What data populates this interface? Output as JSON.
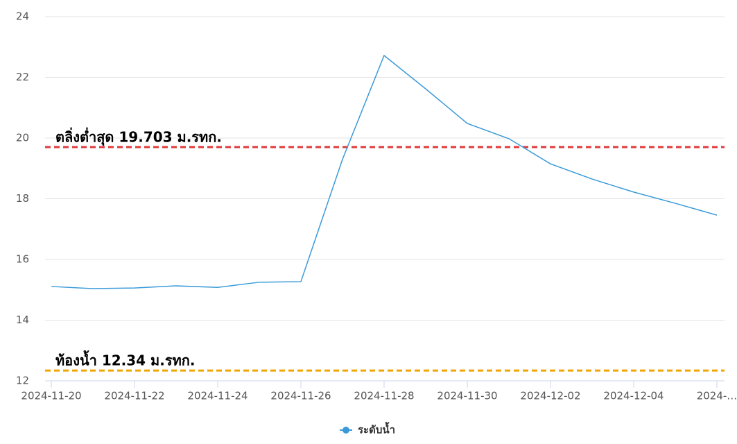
{
  "chart_data": {
    "type": "line",
    "categories": [
      "2024-11-20",
      null,
      "2024-11-22",
      null,
      "2024-11-24",
      null,
      "2024-11-26",
      null,
      "2024-11-28",
      null,
      "2024-11-30",
      null,
      "2024-12-02",
      null,
      "2024-12-04",
      null,
      "2024-…"
    ],
    "series": [
      {
        "name": "ระดับน้ำ",
        "color": "#3a9ad9",
        "values": [
          15.11,
          15.04,
          15.06,
          15.13,
          15.08,
          15.25,
          15.27,
          19.3,
          22.72,
          21.62,
          20.48,
          19.98,
          19.15,
          18.65,
          18.22,
          17.85,
          17.46
        ]
      }
    ],
    "ylim": [
      12,
      24
    ],
    "yticks": [
      12,
      14,
      16,
      18,
      20,
      22,
      24
    ],
    "grid": true,
    "reference_lines": [
      {
        "value": 19.703,
        "label": "ตลิ่งต่ำสุด 19.703 ม.รทก.",
        "color": "#e03a3a"
      },
      {
        "value": 12.34,
        "label": "ท้องน้ำ 12.34 ม.รทก.",
        "color": "#f0a500"
      }
    ],
    "legend": "bottom"
  }
}
